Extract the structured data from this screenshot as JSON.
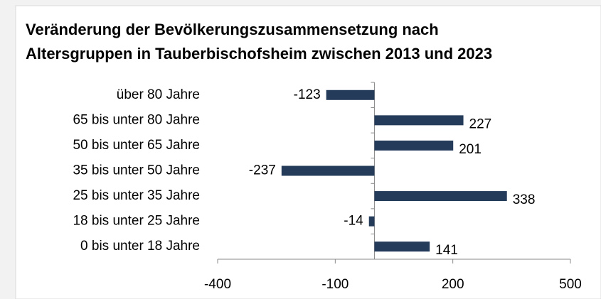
{
  "chart_data": {
    "type": "bar",
    "orientation": "horizontal",
    "title": [
      "Veränderung der Bevölkerungszusammensetzung nach",
      "Altersgruppen in Tauberbischofsheim zwischen 2013 und 2023"
    ],
    "categories": [
      "über 80 Jahre",
      "65 bis unter 80 Jahre",
      "50 bis unter 65 Jahre",
      "35 bis unter 50 Jahre",
      "25 bis unter 35 Jahre",
      "18 bis unter 25 Jahre",
      "0 bis unter 18 Jahre"
    ],
    "values": [
      -123,
      227,
      201,
      -237,
      338,
      -14,
      141
    ],
    "color": "#243b5a",
    "xlim": [
      -400,
      500
    ],
    "xticks": [
      -400,
      -100,
      200,
      500
    ],
    "grid": false
  }
}
